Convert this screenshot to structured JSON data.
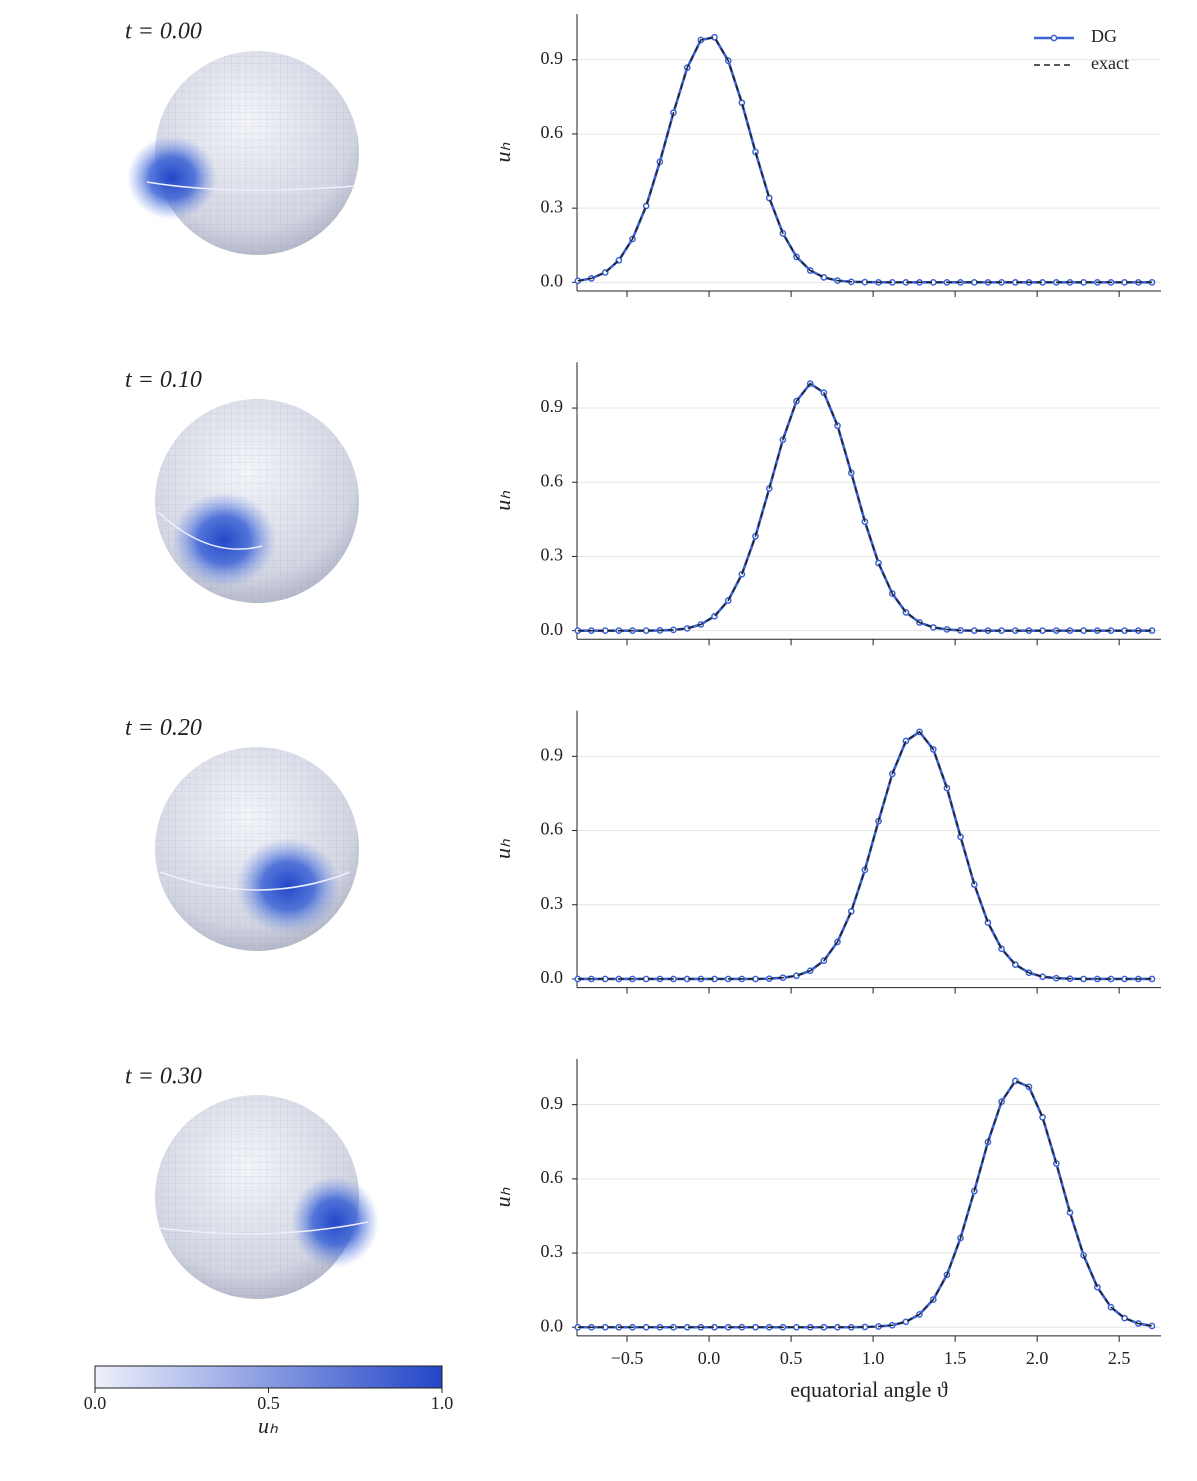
{
  "chart_data": [
    {
      "type": "line",
      "title": "t = 0.00",
      "ylabel": "uₕ",
      "grid": true,
      "legend": "upper right",
      "x": [
        -0.8,
        -0.717,
        -0.633,
        -0.55,
        -0.467,
        -0.383,
        -0.3,
        -0.217,
        -0.133,
        -0.05,
        0.033,
        0.117,
        0.2,
        0.283,
        0.367,
        0.45,
        0.533,
        0.617,
        0.7,
        0.783,
        0.867,
        0.95,
        1.033,
        1.117,
        1.2,
        1.283,
        1.367,
        1.45,
        1.533,
        1.617,
        1.7,
        1.783,
        1.867,
        1.95,
        2.033,
        2.117,
        2.2,
        2.283,
        2.367,
        2.45,
        2.533,
        2.617,
        2.7
      ],
      "series": [
        {
          "name": "DG",
          "color": "#3a62d6",
          "markers": true,
          "values": [
            0.006,
            0.016,
            0.04,
            0.089,
            0.175,
            0.309,
            0.487,
            0.686,
            0.868,
            0.98,
            0.991,
            0.896,
            0.726,
            0.527,
            0.341,
            0.198,
            0.103,
            0.048,
            0.02,
            0.007,
            0.002,
            0.001,
            0,
            0,
            0,
            0,
            0,
            0,
            0,
            0,
            0,
            0,
            0,
            0,
            0,
            0,
            0,
            0,
            0,
            0,
            0,
            0,
            0
          ]
        },
        {
          "name": "exact",
          "color": "#222222",
          "dashed": true,
          "values": [
            0.006,
            0.016,
            0.04,
            0.089,
            0.175,
            0.309,
            0.487,
            0.686,
            0.868,
            0.98,
            0.991,
            0.896,
            0.726,
            0.527,
            0.341,
            0.198,
            0.103,
            0.048,
            0.02,
            0.007,
            0.002,
            0.001,
            0,
            0,
            0,
            0,
            0,
            0,
            0,
            0,
            0,
            0,
            0,
            0,
            0,
            0,
            0,
            0,
            0,
            0,
            0,
            0,
            0
          ]
        }
      ],
      "xlim": [
        -0.805,
        2.755
      ],
      "ylim": [
        -0.035,
        1.085
      ],
      "xticks": [
        -0.5,
        0,
        0.5,
        1,
        1.5,
        2,
        2.5
      ],
      "yticks": [
        {
          "value": 0,
          "label": "0.0"
        },
        {
          "value": 0.3,
          "label": "0.3"
        },
        {
          "value": 0.6,
          "label": "0.6"
        },
        {
          "value": 0.9,
          "label": "0.9"
        }
      ]
    },
    {
      "type": "line",
      "title": "t = 0.10",
      "ylabel": "uₕ",
      "grid": true,
      "x": [
        -0.8,
        -0.717,
        -0.633,
        -0.55,
        -0.467,
        -0.383,
        -0.3,
        -0.217,
        -0.133,
        -0.05,
        0.033,
        0.117,
        0.2,
        0.283,
        0.367,
        0.45,
        0.533,
        0.617,
        0.7,
        0.783,
        0.867,
        0.95,
        1.033,
        1.117,
        1.2,
        1.283,
        1.367,
        1.45,
        1.533,
        1.617,
        1.7,
        1.783,
        1.867,
        1.95,
        2.033,
        2.117,
        2.2,
        2.283,
        2.367,
        2.45,
        2.533,
        2.617,
        2.7
      ],
      "series": [
        {
          "color": "#3a62d6",
          "markers": true,
          "values": [
            0,
            0,
            0,
            0,
            0,
            0,
            0.001,
            0.003,
            0.009,
            0.025,
            0.058,
            0.122,
            0.228,
            0.382,
            0.575,
            0.772,
            0.928,
            0.999,
            0.962,
            0.829,
            0.638,
            0.441,
            0.273,
            0.15,
            0.074,
            0.033,
            0.013,
            0.005,
            0.001,
            0,
            0,
            0,
            0,
            0,
            0,
            0,
            0,
            0,
            0,
            0,
            0,
            0,
            0
          ]
        },
        {
          "color": "#222222",
          "dashed": true,
          "values": [
            0,
            0,
            0,
            0,
            0,
            0,
            0.001,
            0.003,
            0.009,
            0.025,
            0.058,
            0.122,
            0.228,
            0.382,
            0.575,
            0.772,
            0.928,
            0.999,
            0.962,
            0.829,
            0.638,
            0.441,
            0.273,
            0.15,
            0.074,
            0.033,
            0.013,
            0.005,
            0.001,
            0,
            0,
            0,
            0,
            0,
            0,
            0,
            0,
            0,
            0,
            0,
            0,
            0,
            0
          ]
        }
      ],
      "xlim": [
        -0.805,
        2.755
      ],
      "ylim": [
        -0.035,
        1.085
      ],
      "xticks": [
        -0.5,
        0,
        0.5,
        1,
        1.5,
        2,
        2.5
      ],
      "yticks": [
        {
          "value": 0,
          "label": "0.0"
        },
        {
          "value": 0.3,
          "label": "0.3"
        },
        {
          "value": 0.6,
          "label": "0.6"
        },
        {
          "value": 0.9,
          "label": "0.9"
        }
      ]
    },
    {
      "type": "line",
      "title": "t = 0.20",
      "ylabel": "uₕ",
      "grid": true,
      "x": [
        -0.8,
        -0.717,
        -0.633,
        -0.55,
        -0.467,
        -0.383,
        -0.3,
        -0.217,
        -0.133,
        -0.05,
        0.033,
        0.117,
        0.2,
        0.283,
        0.367,
        0.45,
        0.533,
        0.617,
        0.7,
        0.783,
        0.867,
        0.95,
        1.033,
        1.117,
        1.2,
        1.283,
        1.367,
        1.45,
        1.533,
        1.617,
        1.7,
        1.783,
        1.867,
        1.95,
        2.033,
        2.117,
        2.2,
        2.283,
        2.367,
        2.45,
        2.533,
        2.617,
        2.7
      ],
      "series": [
        {
          "color": "#3a62d6",
          "markers": true,
          "values": [
            0,
            0,
            0,
            0,
            0,
            0,
            0,
            0,
            0,
            0,
            0,
            0,
            0,
            0,
            0.001,
            0.005,
            0.013,
            0.033,
            0.074,
            0.15,
            0.273,
            0.441,
            0.638,
            0.829,
            0.962,
            0.999,
            0.928,
            0.772,
            0.575,
            0.382,
            0.228,
            0.122,
            0.058,
            0.025,
            0.009,
            0.003,
            0.001,
            0,
            0,
            0,
            0,
            0,
            0
          ]
        },
        {
          "color": "#222222",
          "dashed": true,
          "values": [
            0,
            0,
            0,
            0,
            0,
            0,
            0,
            0,
            0,
            0,
            0,
            0,
            0,
            0,
            0.001,
            0.005,
            0.013,
            0.033,
            0.074,
            0.15,
            0.273,
            0.441,
            0.638,
            0.829,
            0.962,
            0.999,
            0.928,
            0.772,
            0.575,
            0.382,
            0.228,
            0.122,
            0.058,
            0.025,
            0.009,
            0.003,
            0.001,
            0,
            0,
            0,
            0,
            0,
            0
          ]
        }
      ],
      "xlim": [
        -0.805,
        2.755
      ],
      "ylim": [
        -0.035,
        1.085
      ],
      "xticks": [
        -0.5,
        0,
        0.5,
        1,
        1.5,
        2,
        2.5
      ],
      "yticks": [
        {
          "value": 0,
          "label": "0.0"
        },
        {
          "value": 0.3,
          "label": "0.3"
        },
        {
          "value": 0.6,
          "label": "0.6"
        },
        {
          "value": 0.9,
          "label": "0.9"
        }
      ]
    },
    {
      "type": "line",
      "title": "t = 0.30",
      "ylabel": "uₕ",
      "xlabel": "equatorial angle ϑ",
      "grid": true,
      "x": [
        -0.8,
        -0.717,
        -0.633,
        -0.55,
        -0.467,
        -0.383,
        -0.3,
        -0.217,
        -0.133,
        -0.05,
        0.033,
        0.117,
        0.2,
        0.283,
        0.367,
        0.45,
        0.533,
        0.617,
        0.7,
        0.783,
        0.867,
        0.95,
        1.033,
        1.117,
        1.2,
        1.283,
        1.367,
        1.45,
        1.533,
        1.617,
        1.7,
        1.783,
        1.867,
        1.95,
        2.033,
        2.117,
        2.2,
        2.283,
        2.367,
        2.45,
        2.533,
        2.617,
        2.7
      ],
      "series": [
        {
          "color": "#3a62d6",
          "markers": true,
          "values": [
            0,
            0,
            0,
            0,
            0,
            0,
            0,
            0,
            0,
            0,
            0,
            0,
            0,
            0,
            0,
            0,
            0,
            0,
            0,
            0,
            0,
            0.001,
            0.003,
            0.008,
            0.022,
            0.052,
            0.112,
            0.212,
            0.361,
            0.551,
            0.749,
            0.912,
            0.996,
            0.972,
            0.849,
            0.662,
            0.464,
            0.291,
            0.162,
            0.081,
            0.037,
            0.015,
            0.005
          ]
        },
        {
          "color": "#222222",
          "dashed": true,
          "values": [
            0,
            0,
            0,
            0,
            0,
            0,
            0,
            0,
            0,
            0,
            0,
            0,
            0,
            0,
            0,
            0,
            0,
            0,
            0,
            0,
            0,
            0.001,
            0.003,
            0.008,
            0.022,
            0.052,
            0.112,
            0.212,
            0.361,
            0.551,
            0.749,
            0.912,
            0.996,
            0.972,
            0.849,
            0.662,
            0.464,
            0.291,
            0.162,
            0.081,
            0.037,
            0.015,
            0.005
          ]
        }
      ],
      "xlim": [
        -0.805,
        2.755
      ],
      "ylim": [
        -0.035,
        1.085
      ],
      "xticks": [
        {
          "value": -0.5,
          "label": "−0.5"
        },
        {
          "value": 0,
          "label": "0.0"
        },
        {
          "value": 0.5,
          "label": "0.5"
        },
        {
          "value": 1,
          "label": "1.0"
        },
        {
          "value": 1.5,
          "label": "1.5"
        },
        {
          "value": 2,
          "label": "2.0"
        },
        {
          "value": 2.5,
          "label": "2.5"
        }
      ],
      "yticks": [
        {
          "value": 0,
          "label": "0.0"
        },
        {
          "value": 0.3,
          "label": "0.3"
        },
        {
          "value": 0.6,
          "label": "0.6"
        },
        {
          "value": 0.9,
          "label": "0.9"
        }
      ]
    }
  ],
  "colorbar": {
    "label": "uₕ",
    "colors": [
      "#eef0fb",
      "#2346c8"
    ],
    "lim": [
      0,
      1
    ],
    "ticks": [
      {
        "value": 0,
        "label": "0.0"
      },
      {
        "value": 0.5,
        "label": "0.5"
      },
      {
        "value": 1,
        "label": "1.0"
      }
    ]
  }
}
